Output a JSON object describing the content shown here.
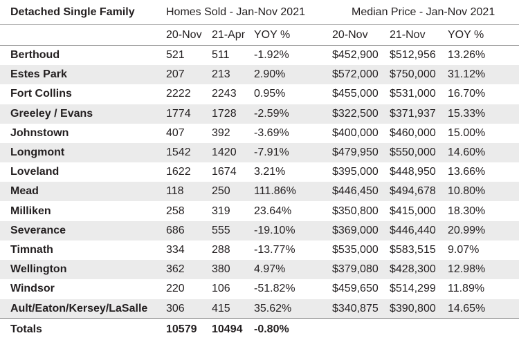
{
  "chart_data": {
    "type": "table",
    "title": "Detached Single Family",
    "group_headers": [
      "Homes Sold - Jan-Nov 2021",
      "Median Price - Jan-Nov 2021"
    ],
    "columns": [
      "20-Nov",
      "21-Apr",
      "YOY %",
      "20-Nov",
      "21-Nov",
      "YOY %"
    ],
    "rows": [
      {
        "area": "Berthoud",
        "cells": [
          "521",
          "511",
          "-1.92%",
          "$452,900",
          "$512,956",
          "13.26%"
        ]
      },
      {
        "area": "Estes Park",
        "cells": [
          "207",
          "213",
          "2.90%",
          "$572,000",
          "$750,000",
          "31.12%"
        ]
      },
      {
        "area": "Fort Collins",
        "cells": [
          "2222",
          "2243",
          "0.95%",
          "$455,000",
          "$531,000",
          "16.70%"
        ]
      },
      {
        "area": "Greeley / Evans",
        "cells": [
          "1774",
          "1728",
          "-2.59%",
          "$322,500",
          "$371,937",
          "15.33%"
        ]
      },
      {
        "area": "Johnstown",
        "cells": [
          "407",
          "392",
          "-3.69%",
          "$400,000",
          "$460,000",
          "15.00%"
        ]
      },
      {
        "area": "Longmont",
        "cells": [
          "1542",
          "1420",
          "-7.91%",
          "$479,950",
          "$550,000",
          "14.60%"
        ]
      },
      {
        "area": "Loveland",
        "cells": [
          "1622",
          "1674",
          "3.21%",
          "$395,000",
          "$448,950",
          "13.66%"
        ]
      },
      {
        "area": "Mead",
        "cells": [
          "118",
          "250",
          "111.86%",
          "$446,450",
          "$494,678",
          "10.80%"
        ]
      },
      {
        "area": "Milliken",
        "cells": [
          "258",
          "319",
          "23.64%",
          "$350,800",
          "$415,000",
          "18.30%"
        ]
      },
      {
        "area": "Severance",
        "cells": [
          "686",
          "555",
          "-19.10%",
          "$369,000",
          "$446,440",
          "20.99%"
        ]
      },
      {
        "area": "Timnath",
        "cells": [
          "334",
          "288",
          "-13.77%",
          "$535,000",
          "$583,515",
          "9.07%"
        ]
      },
      {
        "area": "Wellington",
        "cells": [
          "362",
          "380",
          "4.97%",
          "$379,080",
          "$428,300",
          "12.98%"
        ]
      },
      {
        "area": "Windsor",
        "cells": [
          "220",
          "106",
          "-51.82%",
          "$459,650",
          "$514,299",
          "11.89%"
        ]
      },
      {
        "area": "Ault/Eaton/Kersey/LaSalle",
        "cells": [
          "306",
          "415",
          "35.62%",
          "$340,875",
          "$390,800",
          "14.65%"
        ]
      }
    ],
    "totals": {
      "label": "Totals",
      "cells": [
        "10579",
        "10494",
        "-0.80%",
        "",
        "",
        ""
      ]
    }
  },
  "colors": {
    "shade": "#ebebeb",
    "rule": "#7d7d7d",
    "text": "#231f20"
  }
}
